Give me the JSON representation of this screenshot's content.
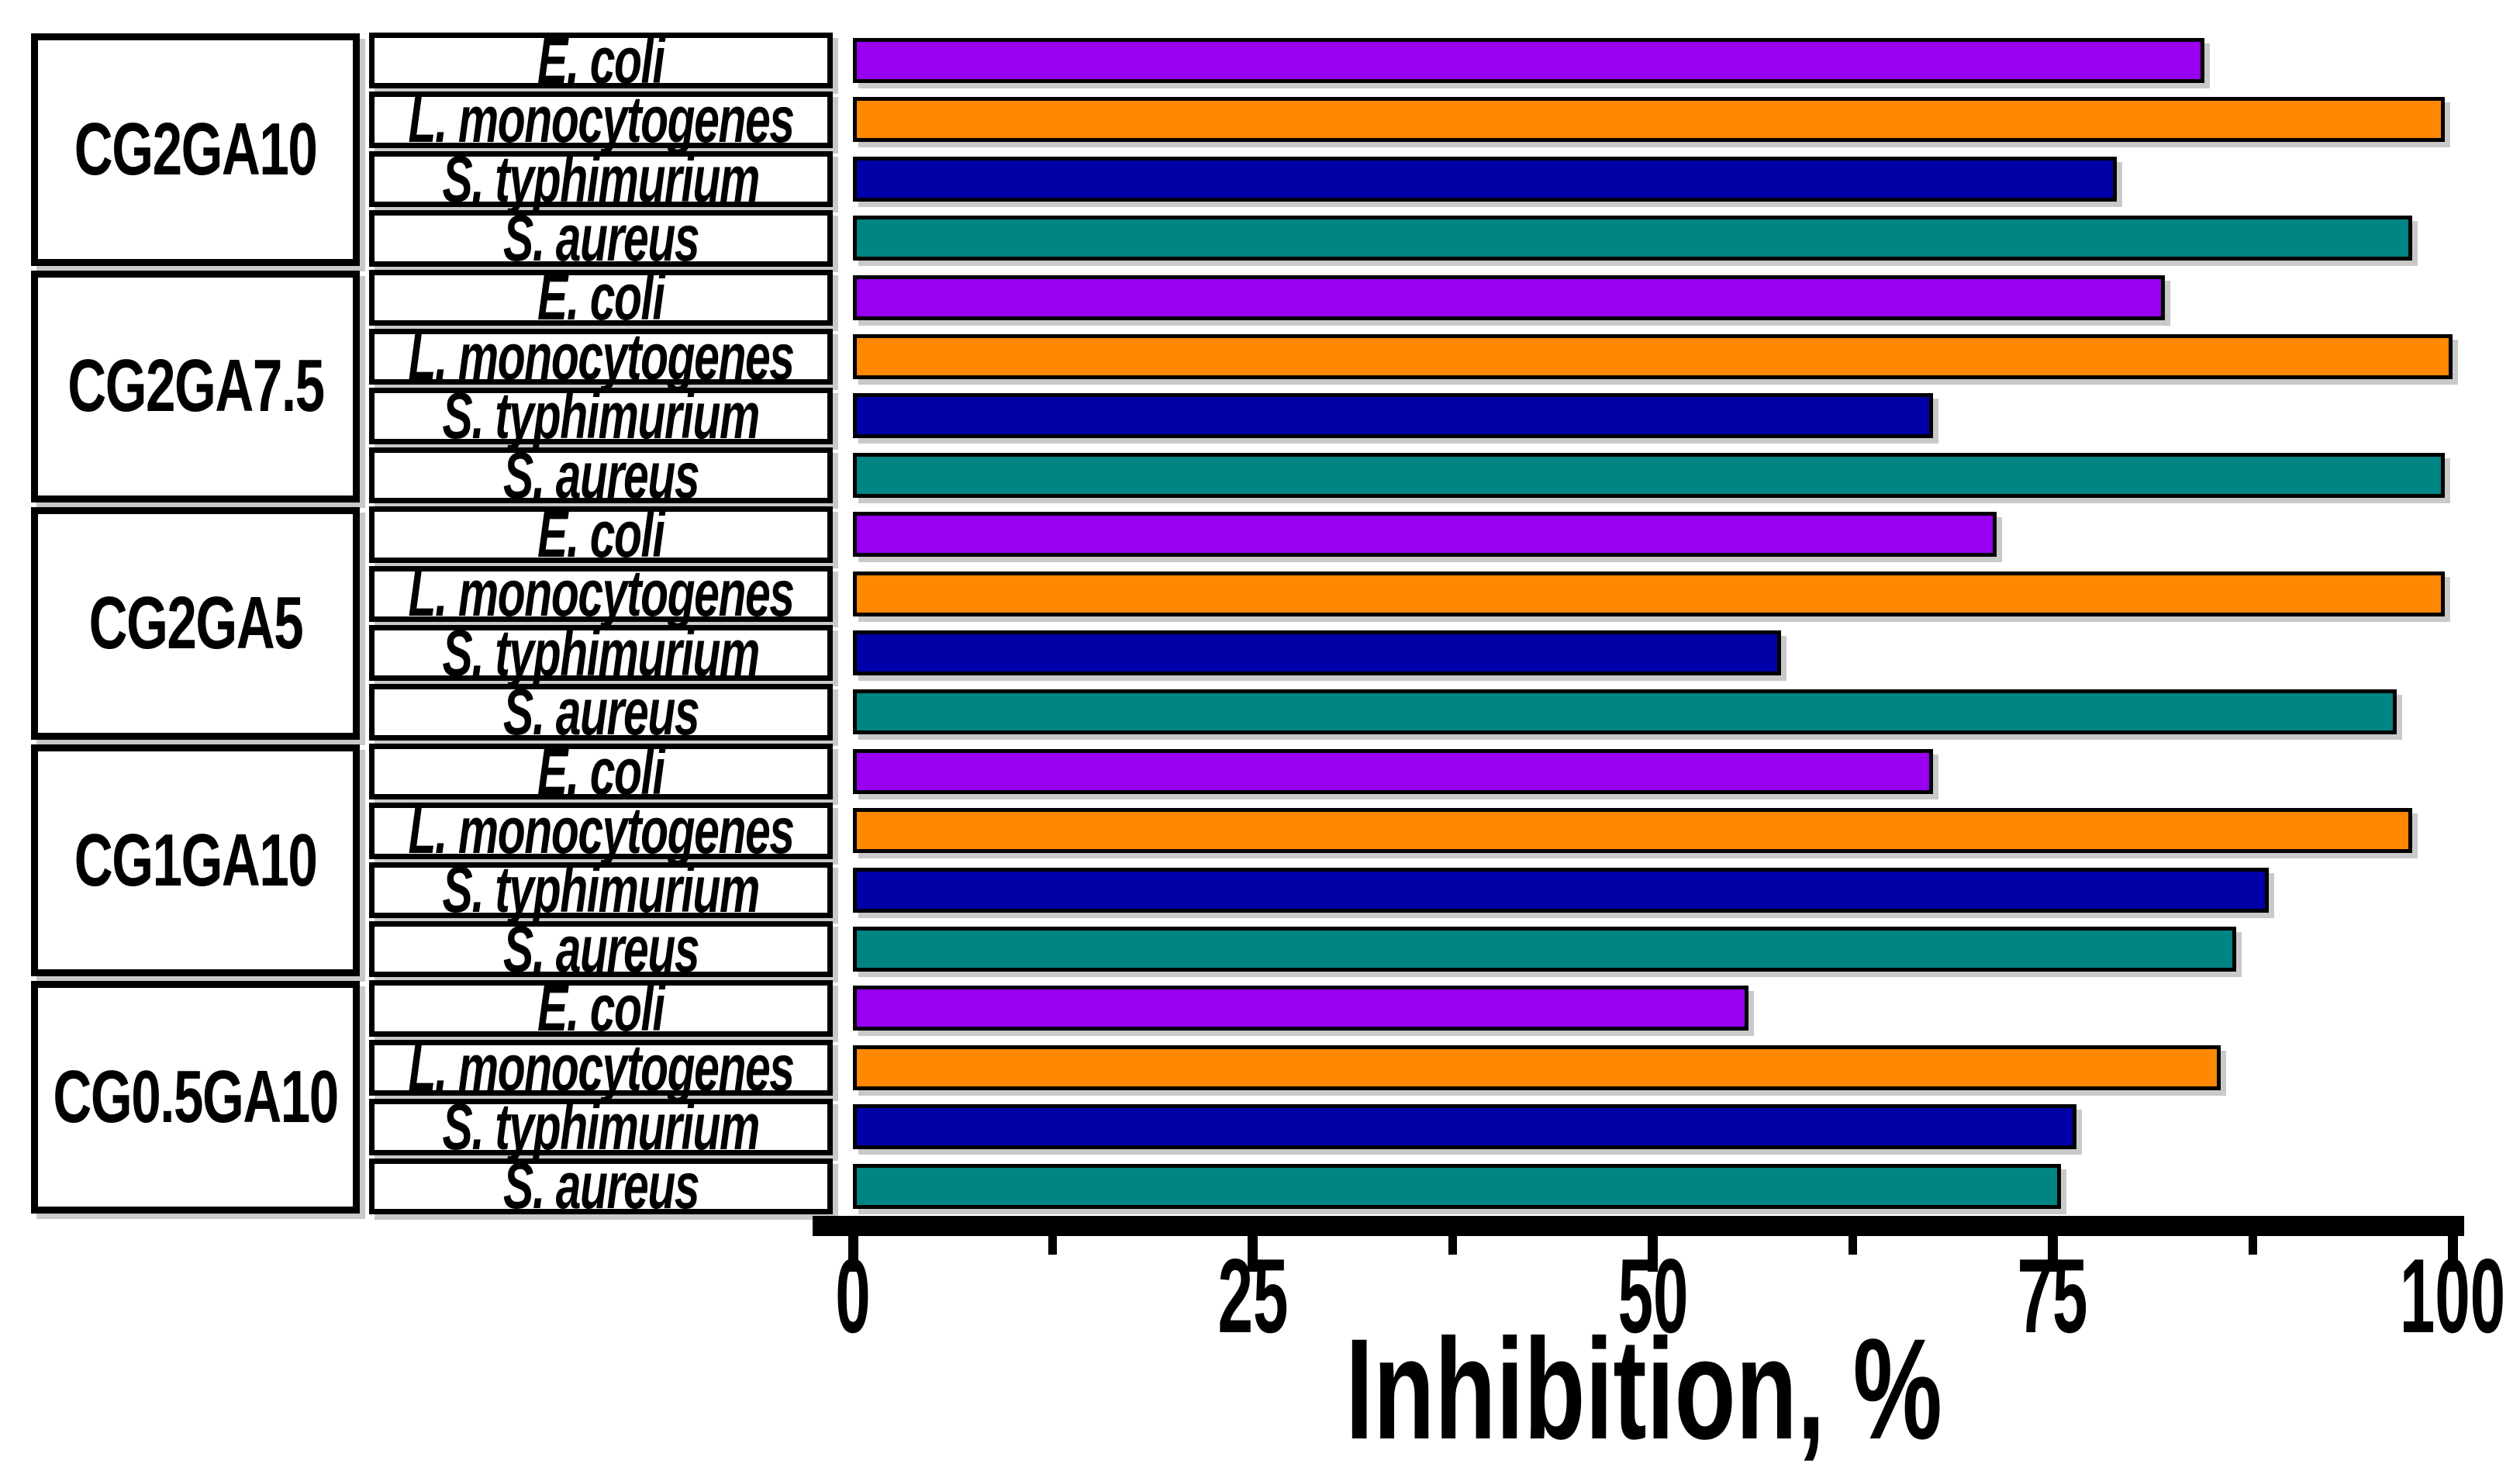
{
  "chart_data": {
    "type": "bar",
    "orientation": "horizontal",
    "title": "",
    "xlabel": "Inhibition, %",
    "ylabel": "",
    "xlim": [
      0,
      100
    ],
    "x_major_ticks": [
      0,
      25,
      50,
      75,
      100
    ],
    "x_minor_ticks": [
      12.5,
      37.5,
      62.5,
      87.5
    ],
    "grid": false,
    "legend_position": "row-labels-in-left-table",
    "categories": [
      "CG2GA10",
      "CG2GA7.5",
      "CG2GA5",
      "CG1GA10",
      "CG0.5GA10"
    ],
    "series": [
      {
        "name": "E. coli",
        "color": "#9800F0",
        "values": [
          84.5,
          82.0,
          71.5,
          67.5,
          56.0
        ]
      },
      {
        "name": "L. monocytogenes",
        "color": "#FF8800",
        "values": [
          99.5,
          100.0,
          99.5,
          97.5,
          85.5
        ]
      },
      {
        "name": "S. typhimurium",
        "color": "#0000A8",
        "values": [
          79.0,
          67.5,
          58.0,
          88.5,
          76.5
        ]
      },
      {
        "name": "S. aureus",
        "color": "#008484",
        "values": [
          97.5,
          99.5,
          96.5,
          86.5,
          75.5
        ]
      }
    ]
  },
  "axis": {
    "label": "Inhibition, %",
    "tick_labels": [
      "0",
      "25",
      "50",
      "75",
      "100"
    ]
  },
  "colors": {
    "bar_border": "#000000",
    "table_border": "#000000",
    "shadow": "#c9c9c9",
    "background": "#ffffff"
  }
}
